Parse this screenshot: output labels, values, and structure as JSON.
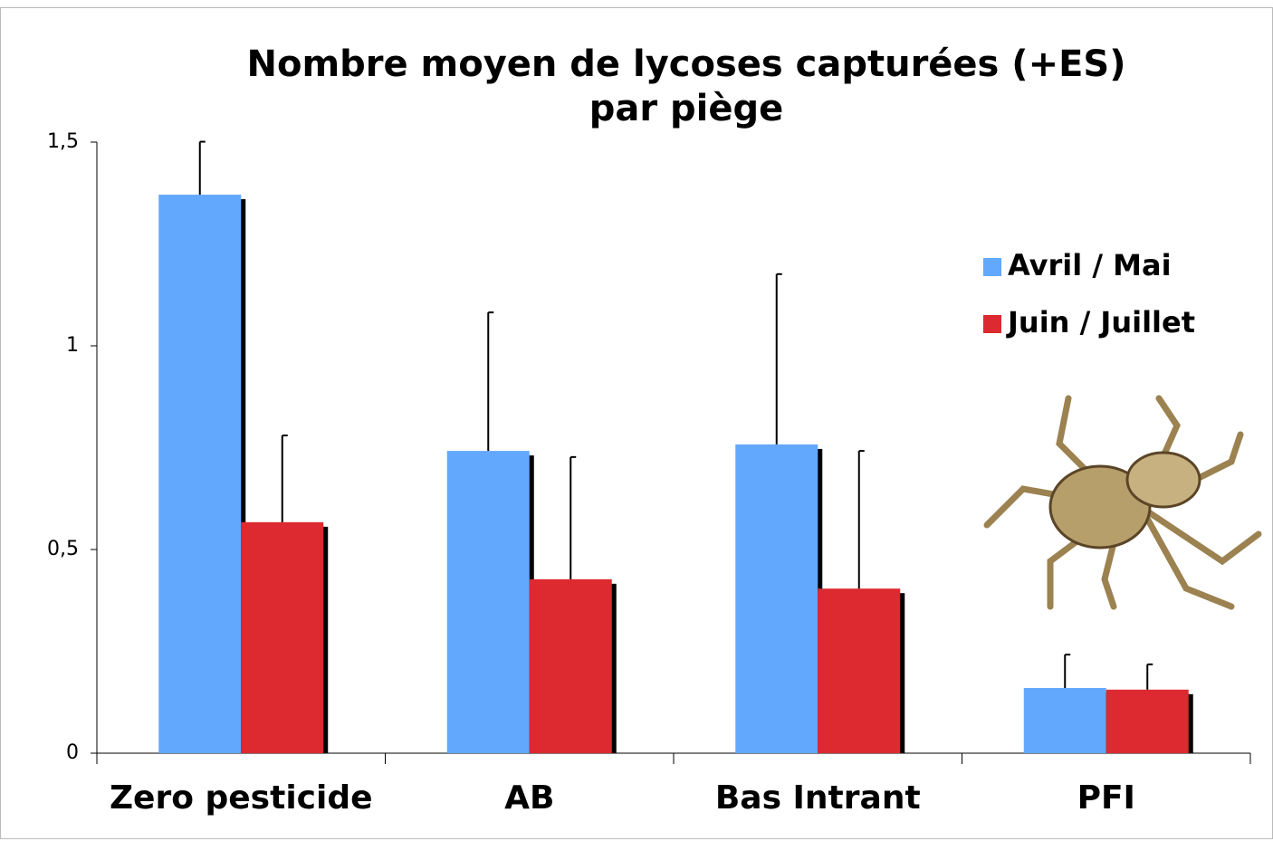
{
  "chart_data": {
    "type": "bar",
    "title": [
      "Nombre moyen de lycoses capturées (+ES)",
      "par piège"
    ],
    "categories": [
      "Zero pesticide",
      "AB",
      "Bas Intrant",
      "PFI"
    ],
    "series": [
      {
        "name": "Avril / Mai",
        "color": "#62a8fd",
        "values": [
          1.371,
          0.742,
          0.758,
          0.16
        ],
        "errors": [
          0.13,
          0.34,
          0.418,
          0.082
        ]
      },
      {
        "name": "Juin / Juillet",
        "color": "#dc2a30",
        "values": [
          0.567,
          0.427,
          0.404,
          0.156
        ],
        "errors": [
          0.213,
          0.3,
          0.338,
          0.062
        ]
      }
    ],
    "ylim": [
      0,
      1.5
    ],
    "yticks": [
      0,
      {
        "value": 0.5,
        "label": "0,5"
      },
      1,
      {
        "value": 1.5,
        "label": "1,5"
      }
    ],
    "grid": false,
    "legend": "right"
  }
}
